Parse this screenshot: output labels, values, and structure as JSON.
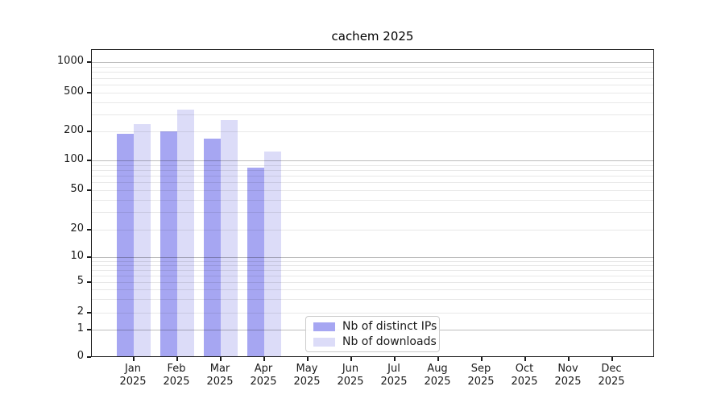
{
  "title": "cachem 2025",
  "colors": {
    "distinct_ips": "#a6a6f2",
    "downloads": "#dcdcf8",
    "frame": "#1a1a1a"
  },
  "legend": {
    "items": [
      {
        "label": "Nb of distinct IPs",
        "color": "#a6a6f2"
      },
      {
        "label": "Nb of downloads",
        "color": "#dcdcf8"
      }
    ]
  },
  "chart_data": {
    "type": "bar",
    "title": "cachem 2025",
    "categories": [
      "Jan 2025",
      "Feb 2025",
      "Mar 2025",
      "Apr 2025",
      "May 2025",
      "Jun 2025",
      "Jul 2025",
      "Aug 2025",
      "Sep 2025",
      "Oct 2025",
      "Nov 2025",
      "Dec 2025"
    ],
    "series": [
      {
        "name": "Nb of distinct IPs",
        "color": "#a6a6f2",
        "values": [
          190,
          200,
          169,
          85,
          null,
          null,
          null,
          null,
          null,
          null,
          null,
          null
        ]
      },
      {
        "name": "Nb of downloads",
        "color": "#dcdcf8",
        "values": [
          237,
          335,
          261,
          123,
          null,
          null,
          null,
          null,
          null,
          null,
          null,
          null
        ]
      }
    ],
    "xlabel": "",
    "ylabel": "",
    "y_axis": {
      "scale": "symlog",
      "tick_values": [
        0,
        1,
        2,
        5,
        10,
        20,
        50,
        100,
        200,
        500,
        1000
      ],
      "major_grid_values": [
        1,
        10,
        100,
        1000
      ],
      "minor_grid_values": [
        2,
        3,
        4,
        5,
        6,
        7,
        8,
        9,
        20,
        30,
        40,
        50,
        60,
        70,
        80,
        90,
        200,
        300,
        400,
        500,
        600,
        700,
        800,
        900
      ]
    },
    "grid": "horizontal, major and minor, drawn over bars",
    "legend_position": "inside lower-center"
  }
}
